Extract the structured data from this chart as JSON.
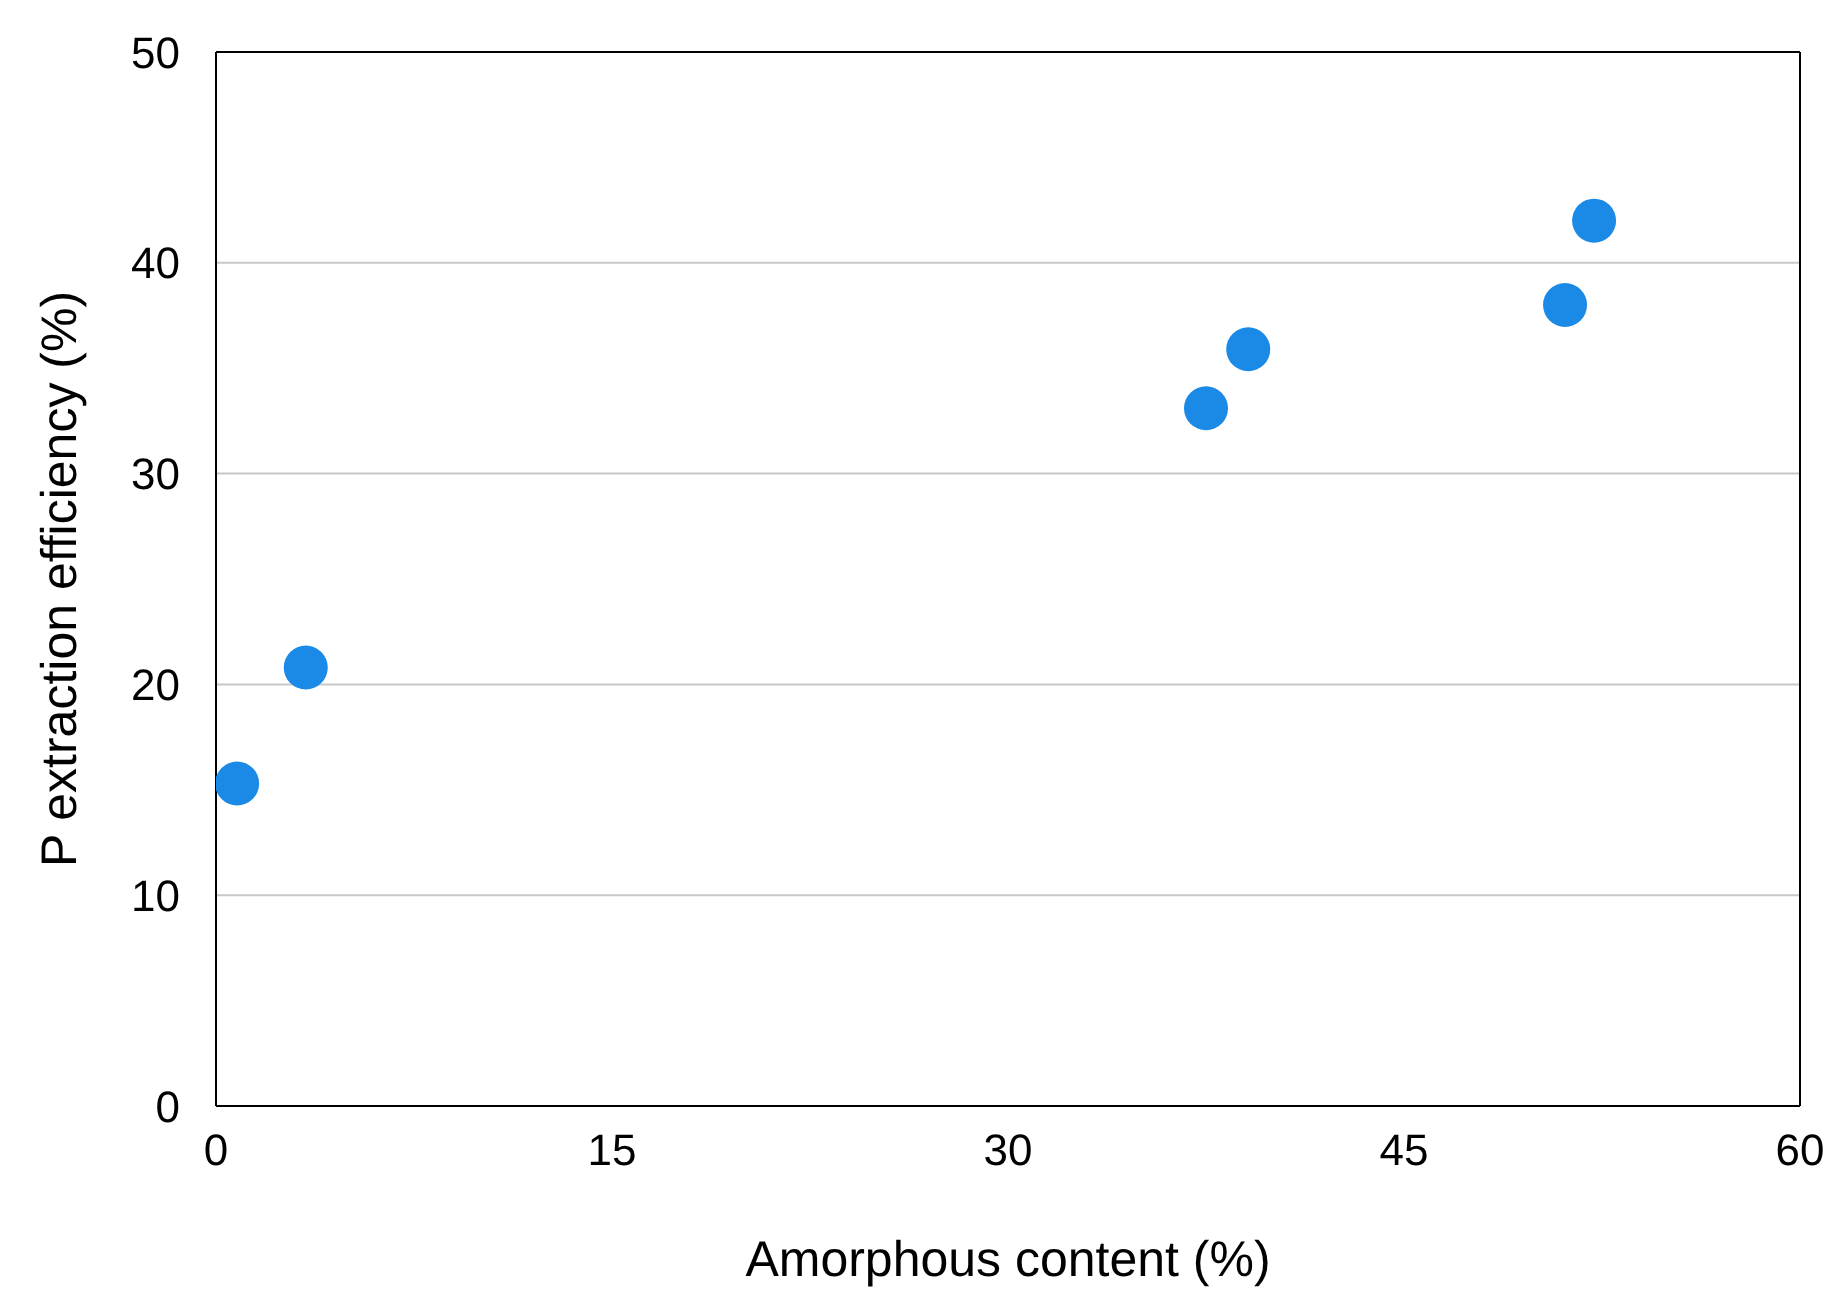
{
  "chart_data": {
    "type": "scatter",
    "xlabel": "Amorphous content (%)",
    "ylabel": "P extraction efficiency (%)",
    "x": [
      0.8,
      3.4,
      37.5,
      39.1,
      51.1,
      52.2
    ],
    "series": [
      {
        "color": "#1a8ae6",
        "values": [
          15.3,
          20.8,
          33.1,
          35.9,
          38.0,
          42.0
        ]
      }
    ],
    "xlim": [
      0,
      60
    ],
    "xticks": [
      0,
      15,
      30,
      45,
      60
    ],
    "ylim": [
      0,
      50
    ],
    "yticks": [
      0,
      10,
      20,
      30,
      40,
      50
    ],
    "grid": "y",
    "legend": false,
    "marker": "circle"
  }
}
